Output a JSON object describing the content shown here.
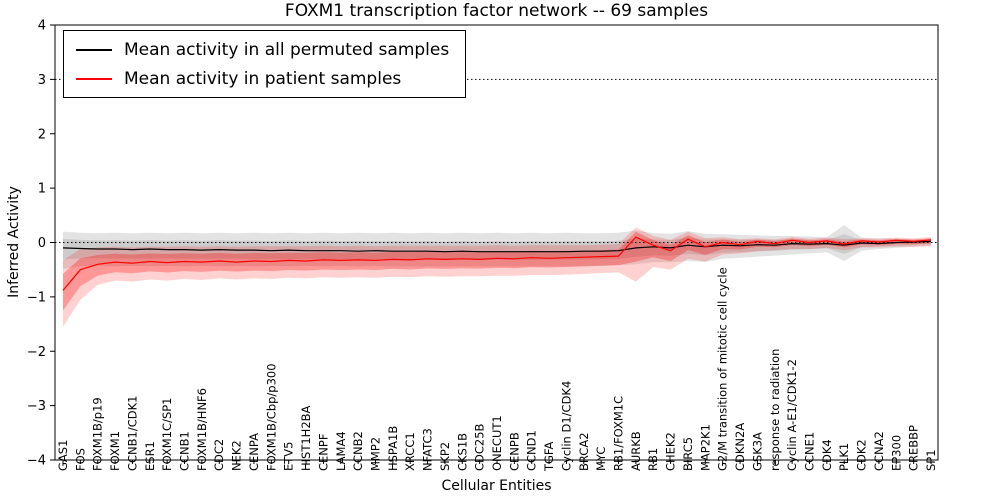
{
  "chart_data": {
    "type": "line",
    "title": "FOXM1 transcription factor network -- 69 samples",
    "xlabel": "Cellular Entities",
    "ylabel": "Inferred Activity",
    "ylim": [
      -4,
      4
    ],
    "y_ticks": [
      -4,
      -3,
      -2,
      -1,
      0,
      1,
      2,
      3,
      4
    ],
    "grid": false,
    "legend_position": "upper left",
    "reference_lines": [
      {
        "y": 0,
        "style": "dotted",
        "color": "#000000"
      },
      {
        "y": 3,
        "style": "dotted",
        "color": "#000000"
      }
    ],
    "categories": [
      "GAS1",
      "FOS",
      "FOXM1B/p19",
      "FOXM1",
      "CCNB1/CDK1",
      "ESR1",
      "FOXM1C/SP1",
      "CCNB1",
      "FOXM1B/HNF6",
      "CDC2",
      "NEK2",
      "CENPA",
      "FOXM1B/Cbp/p300",
      "ETV5",
      "HIST1H2BA",
      "CENPF",
      "LAMA4",
      "CCNB2",
      "MMP2",
      "HSPA1B",
      "XRCC1",
      "NFATC3",
      "SKP2",
      "CKS1B",
      "CDC25B",
      "ONECUT1",
      "CENPB",
      "CCND1",
      "TGFA",
      "Cyclin D1/CDK4",
      "BRCA2",
      "MYC",
      "RB1/FOXM1C",
      "AURKB",
      "RB1",
      "CHEK2",
      "BIRC5",
      "MAP2K1",
      "G2/M transition of mitotic cell cycle",
      "CDKN2A",
      "GSK3A",
      "response to radiation",
      "Cyclin A-E1/CDK1-2",
      "CCNE1",
      "CDK4",
      "PLK1",
      "CDK2",
      "CCNA2",
      "EP300",
      "CREBBP",
      "SP1"
    ],
    "series": [
      {
        "name": "Mean activity in all permuted samples",
        "color": "#000000",
        "band_color": "#999999",
        "values": [
          -0.1,
          -0.11,
          -0.12,
          -0.12,
          -0.13,
          -0.12,
          -0.13,
          -0.13,
          -0.14,
          -0.13,
          -0.14,
          -0.14,
          -0.15,
          -0.14,
          -0.15,
          -0.15,
          -0.15,
          -0.16,
          -0.15,
          -0.16,
          -0.16,
          -0.16,
          -0.17,
          -0.16,
          -0.17,
          -0.17,
          -0.17,
          -0.17,
          -0.17,
          -0.17,
          -0.16,
          -0.16,
          -0.15,
          -0.1,
          -0.08,
          -0.1,
          -0.05,
          -0.08,
          -0.05,
          -0.06,
          -0.04,
          -0.05,
          -0.02,
          -0.03,
          -0.02,
          -0.05,
          -0.01,
          -0.02,
          0.0,
          0.01,
          0.02
        ],
        "band_upper": [
          0.2,
          0.18,
          0.17,
          0.18,
          0.17,
          0.18,
          0.17,
          0.18,
          0.17,
          0.18,
          0.17,
          0.18,
          0.17,
          0.18,
          0.17,
          0.18,
          0.17,
          0.18,
          0.17,
          0.18,
          0.17,
          0.18,
          0.17,
          0.18,
          0.17,
          0.18,
          0.17,
          0.18,
          0.17,
          0.18,
          0.17,
          0.17,
          0.18,
          0.22,
          0.17,
          0.16,
          0.21,
          0.16,
          0.15,
          0.14,
          0.13,
          0.12,
          0.12,
          0.11,
          0.1,
          0.32,
          0.09,
          0.08,
          0.07,
          0.06,
          0.05
        ],
        "band_lower": [
          -0.48,
          -0.44,
          -0.43,
          -0.44,
          -0.43,
          -0.44,
          -0.43,
          -0.44,
          -0.43,
          -0.44,
          -0.43,
          -0.44,
          -0.43,
          -0.44,
          -0.43,
          -0.44,
          -0.43,
          -0.44,
          -0.43,
          -0.44,
          -0.44,
          -0.44,
          -0.44,
          -0.44,
          -0.44,
          -0.44,
          -0.44,
          -0.44,
          -0.44,
          -0.44,
          -0.43,
          -0.43,
          -0.42,
          -0.4,
          -0.36,
          -0.36,
          -0.34,
          -0.36,
          -0.3,
          -0.28,
          -0.26,
          -0.24,
          -0.22,
          -0.2,
          -0.18,
          -0.34,
          -0.15,
          -0.12,
          -0.1,
          -0.08,
          -0.06
        ]
      },
      {
        "name": "Mean activity in patient samples",
        "color": "#ff0000",
        "band_color": "#ff0000",
        "values": [
          -0.88,
          -0.5,
          -0.4,
          -0.36,
          -0.38,
          -0.35,
          -0.37,
          -0.35,
          -0.36,
          -0.34,
          -0.36,
          -0.34,
          -0.35,
          -0.33,
          -0.34,
          -0.32,
          -0.33,
          -0.32,
          -0.33,
          -0.31,
          -0.32,
          -0.3,
          -0.31,
          -0.3,
          -0.31,
          -0.29,
          -0.3,
          -0.28,
          -0.29,
          -0.28,
          -0.27,
          -0.26,
          -0.25,
          0.1,
          -0.05,
          -0.15,
          0.06,
          -0.08,
          0.0,
          -0.04,
          0.02,
          -0.02,
          0.04,
          0.0,
          0.03,
          -0.03,
          0.03,
          0.01,
          0.04,
          0.02,
          0.05
        ],
        "band_upper": [
          -0.33,
          -0.12,
          -0.09,
          -0.08,
          -0.09,
          -0.08,
          -0.08,
          -0.07,
          -0.08,
          -0.07,
          -0.08,
          -0.07,
          -0.07,
          -0.07,
          -0.07,
          -0.06,
          -0.07,
          -0.06,
          -0.07,
          -0.06,
          -0.06,
          -0.06,
          -0.06,
          -0.06,
          -0.06,
          -0.05,
          -0.06,
          -0.05,
          -0.05,
          -0.05,
          -0.05,
          -0.04,
          -0.03,
          0.28,
          0.12,
          0.05,
          0.2,
          0.08,
          0.1,
          0.06,
          0.08,
          0.06,
          0.1,
          0.07,
          0.09,
          0.06,
          0.08,
          0.07,
          0.09,
          0.08,
          0.1
        ],
        "band_lower": [
          -1.55,
          -1.05,
          -0.78,
          -0.7,
          -0.72,
          -0.68,
          -0.7,
          -0.67,
          -0.69,
          -0.66,
          -0.68,
          -0.66,
          -0.67,
          -0.65,
          -0.66,
          -0.64,
          -0.65,
          -0.64,
          -0.65,
          -0.63,
          -0.64,
          -0.62,
          -0.63,
          -0.62,
          -0.62,
          -0.61,
          -0.61,
          -0.6,
          -0.6,
          -0.59,
          -0.58,
          -0.56,
          -0.55,
          -0.72,
          -0.45,
          -0.5,
          -0.3,
          -0.35,
          -0.22,
          -0.2,
          -0.16,
          -0.14,
          -0.12,
          -0.12,
          -0.1,
          -0.14,
          -0.09,
          -0.09,
          -0.08,
          -0.08,
          -0.07
        ]
      }
    ]
  }
}
